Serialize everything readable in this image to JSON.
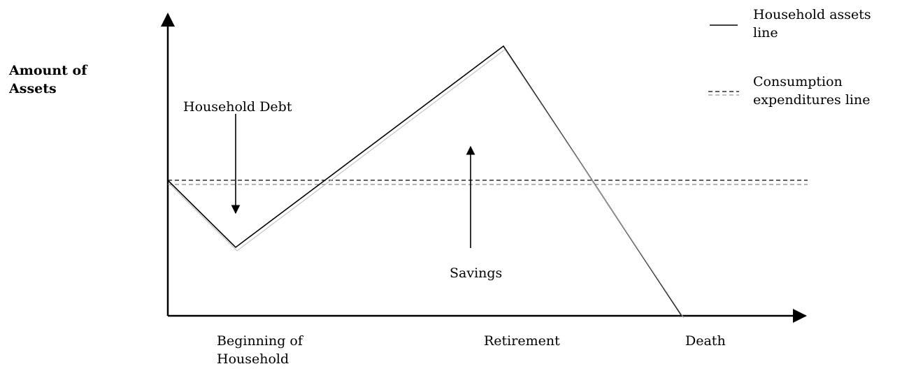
{
  "y_axis_label": "Amount of Assets",
  "legend": [
    {
      "label": "Household assets line"
    },
    {
      "label": "Consumption expenditures line"
    }
  ],
  "annotations": {
    "debt": "Household Debt",
    "savings": "Savings"
  },
  "x_labels": [
    "Beginning of Household",
    "Retirement",
    "Death"
  ]
}
